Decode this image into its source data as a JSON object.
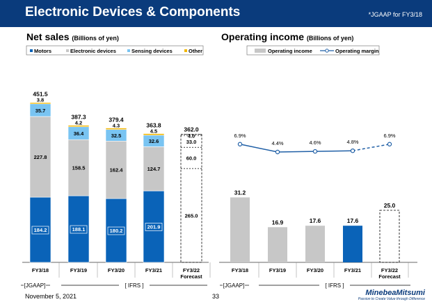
{
  "header": {
    "title": "Electronic Devices & Components",
    "note": "*JGAAP for FY3/18"
  },
  "footer": {
    "date": "November 5, 2021",
    "page": "33",
    "logo": "MinebeaMitsumi",
    "logo_tagline": "Passion to Create Value through Difference"
  },
  "colors": {
    "header_bg": "#0a3b7c",
    "motors": "#0a63b8",
    "electronic": "#c7c7c7",
    "sensing": "#79c4f2",
    "other": "#f2b705",
    "income_bar": "#c7c7c7",
    "income_bar_highlight": "#0a63b8",
    "margin_line": "#1f5fa6"
  },
  "chart_data": [
    {
      "type": "bar",
      "stacked": true,
      "title": "Net sales",
      "unit": "(Billions of yen)",
      "categories": [
        "FY3/18",
        "FY3/19",
        "FY3/20",
        "FY3/21",
        "FY3/22"
      ],
      "category_sub": [
        "",
        "",
        "",
        "",
        "Forecast"
      ],
      "legend": [
        "Motors",
        "Electronic devices",
        "Sensing devices",
        "Other"
      ],
      "series": [
        {
          "name": "Motors",
          "values": [
            184.2,
            188.1,
            180.2,
            201.9,
            265.0
          ],
          "labels": [
            "184.2",
            "188.1",
            "180.2",
            "201.9",
            "265.0"
          ]
        },
        {
          "name": "Electronic devices",
          "values": [
            227.8,
            158.5,
            162.4,
            124.7,
            60.0
          ],
          "labels": [
            "227.8",
            "158.5",
            "162.4",
            "124.7",
            "60.0"
          ]
        },
        {
          "name": "Sensing devices",
          "values": [
            35.7,
            36.4,
            32.5,
            32.6,
            33.0
          ],
          "labels": [
            "35.7",
            "36.4",
            "32.5",
            "32.6",
            "33.0"
          ]
        },
        {
          "name": "Other",
          "values": [
            3.8,
            4.2,
            4.3,
            4.5,
            4.0
          ],
          "labels": [
            "3.8",
            "4.2",
            "4.3",
            "4.5",
            "4.0"
          ]
        }
      ],
      "totals": [
        451.5,
        387.3,
        379.4,
        363.8,
        362.0
      ],
      "total_labels": [
        "451.5",
        "387.3",
        "379.4",
        "363.8",
        "362.0"
      ],
      "forecast_index": 4,
      "ylim": [
        0,
        500
      ],
      "gaap_labels": {
        "jgaap": "[JGAAP]",
        "ifrs": "[ IFRS ]"
      }
    },
    {
      "type": "bar+line",
      "title": "Operating income",
      "unit": "(Billions of yen)",
      "categories": [
        "FY3/18",
        "FY3/19",
        "FY3/20",
        "FY3/21",
        "FY3/22"
      ],
      "category_sub": [
        "",
        "",
        "",
        "",
        "Forecast"
      ],
      "legend": [
        "Operating income",
        "Operating margin"
      ],
      "bar_values": [
        31.2,
        16.9,
        17.6,
        17.6,
        25.0
      ],
      "bar_labels": [
        "31.2",
        "16.9",
        "17.6",
        "17.6",
        "25.0"
      ],
      "highlight_index": 3,
      "forecast_index": 4,
      "margin_values": [
        6.9,
        4.4,
        4.6,
        4.8,
        6.9
      ],
      "margin_labels": [
        "6.9%",
        "4.4%",
        "4.6%",
        "4.8%",
        "6.9%"
      ],
      "ylim": [
        0,
        70
      ],
      "gaap_labels": {
        "jgaap": "[JGAAP]",
        "ifrs": "[ IFRS ]"
      }
    }
  ]
}
